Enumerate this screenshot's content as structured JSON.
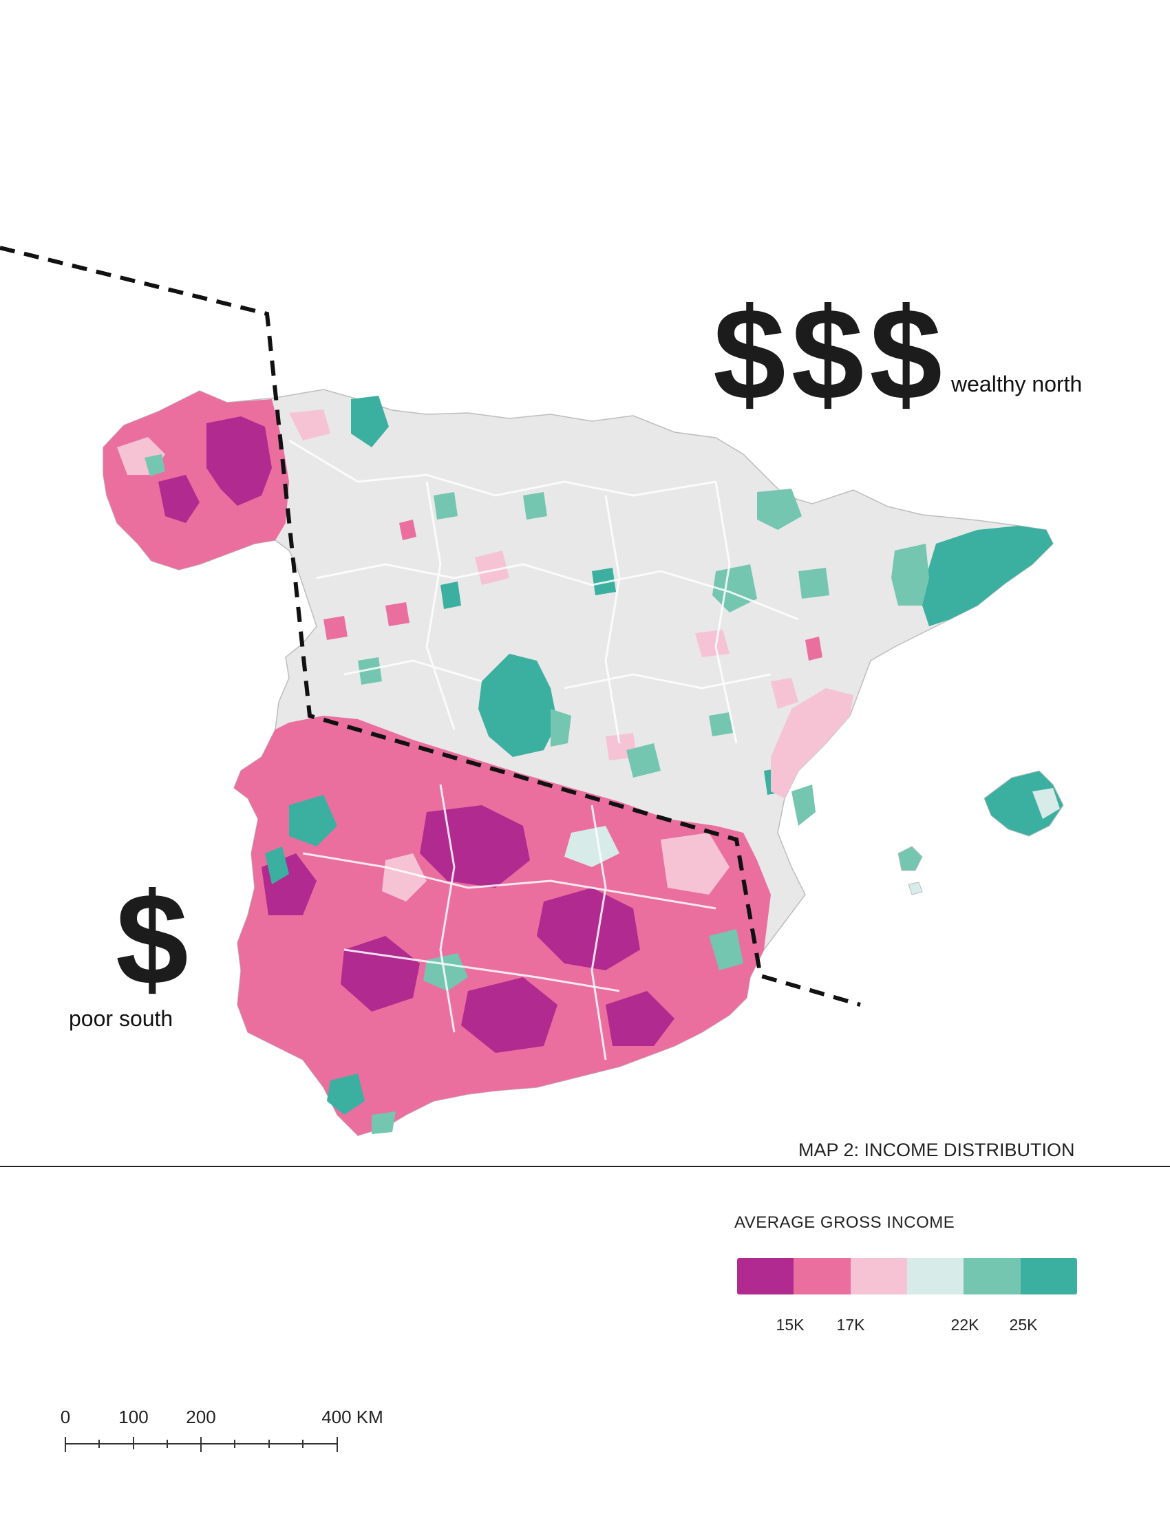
{
  "annotations": {
    "north_symbol": "$$$",
    "north_label": "wealthy north",
    "south_symbol": "$",
    "south_label": "poor south"
  },
  "map": {
    "title": "MAP 2: INCOME DISTRIBUTION"
  },
  "legend": {
    "title": "AVERAGE GROSS INCOME",
    "colors": [
      "#b02a8f",
      "#ea6f9f",
      "#f6c3d5",
      "#d7ebe8",
      "#74c6b0",
      "#3bb0a0"
    ],
    "tick_labels": [
      "15K",
      "17K",
      "22K",
      "25K"
    ]
  },
  "scale_bar": {
    "labels": [
      "0",
      "100",
      "200",
      "400 KM"
    ]
  },
  "colors": {
    "land_base": "#e8e8e8",
    "low_income": "#b02a8f",
    "high_income": "#3bb0a0",
    "divider_line": "#111111"
  }
}
